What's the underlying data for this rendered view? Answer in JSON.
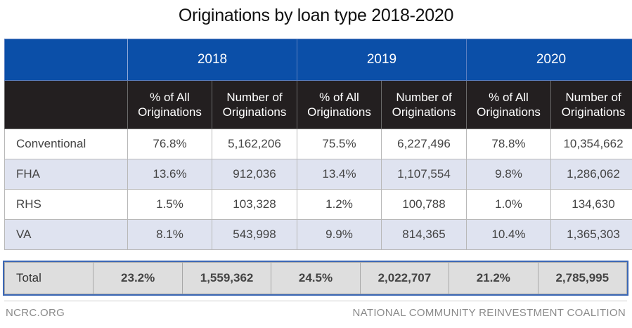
{
  "title": "Originations by loan type 2018-2020",
  "years": [
    "2018",
    "2019",
    "2020"
  ],
  "subheaders": {
    "pct": [
      "% of All",
      "Originations"
    ],
    "num": [
      "Number of",
      "Originations"
    ]
  },
  "rows": [
    {
      "label": "Conventional",
      "cells": [
        "76.8%",
        "5,162,206",
        "75.5%",
        "6,227,496",
        "78.8%",
        "10,354,662"
      ]
    },
    {
      "label": "FHA",
      "cells": [
        "13.6%",
        "912,036",
        "13.4%",
        "1,107,554",
        "9.8%",
        "1,286,062"
      ]
    },
    {
      "label": "RHS",
      "cells": [
        "1.5%",
        "103,328",
        "1.2%",
        "100,788",
        "1.0%",
        "134,630"
      ]
    },
    {
      "label": "VA",
      "cells": [
        "8.1%",
        "543,998",
        "9.9%",
        "814,365",
        "10.4%",
        "1,365,303"
      ]
    }
  ],
  "total": {
    "label": "Total",
    "cells": [
      "23.2%",
      "1,559,362",
      "24.5%",
      "2,022,707",
      "21.2%",
      "2,785,995"
    ]
  },
  "footer": {
    "left": "NCRC.ORG",
    "right": "NATIONAL COMMUNITY REINVESTMENT COALITION"
  },
  "colors": {
    "year_header": "#0b4fa8",
    "sub_header": "#231f20",
    "alt_row": "#dfe3f0",
    "total_row": "#dedede",
    "total_border": "#3b67b5"
  },
  "chart_data": {
    "type": "table",
    "title": "Originations by loan type 2018-2020",
    "columns": [
      "2018 % of All Originations",
      "2018 Number of Originations",
      "2019 % of All Originations",
      "2019 Number of Originations",
      "2020 % of All Originations",
      "2020 Number of Originations"
    ],
    "row_labels": [
      "Conventional",
      "FHA",
      "RHS",
      "VA",
      "Total"
    ],
    "values": [
      [
        76.8,
        5162206,
        75.5,
        6227496,
        78.8,
        10354662
      ],
      [
        13.6,
        912036,
        13.4,
        1107554,
        9.8,
        1286062
      ],
      [
        1.5,
        103328,
        1.2,
        100788,
        1.0,
        134630
      ],
      [
        8.1,
        543998,
        9.9,
        814365,
        10.4,
        1365303
      ],
      [
        23.2,
        1559362,
        24.5,
        2022707,
        21.2,
        2785995
      ]
    ]
  }
}
